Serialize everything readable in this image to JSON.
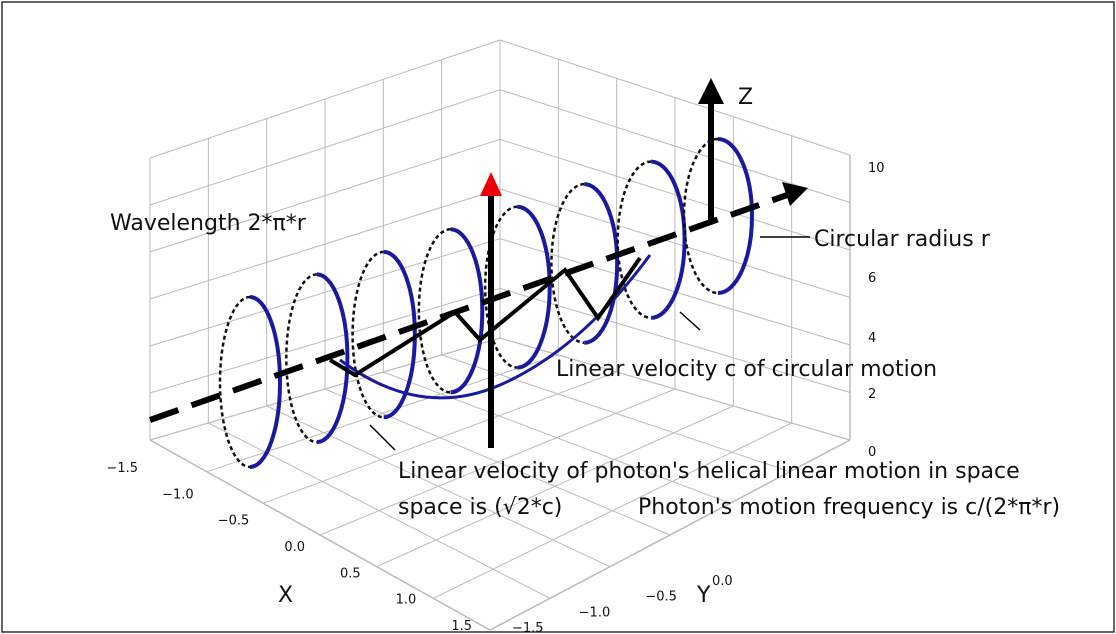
{
  "axes": {
    "x_label": "X",
    "y_label": "Y",
    "z_label": "Z",
    "x_ticks": [
      "−1.5",
      "−1.0",
      "−0.5",
      "0.0",
      "0.5",
      "1.0",
      "1.5"
    ],
    "y_ticks": [
      "0.0",
      "−0.5",
      "−1.0",
      "−1.5"
    ],
    "z_ticks": [
      "10",
      "6",
      "4",
      "2",
      "0"
    ]
  },
  "annotations": {
    "wavelength": "Wavelength 2*π*r",
    "radius": "Circular radius r",
    "circular_velocity": "Linear velocity c of circular motion",
    "helical_velocity": "Linear velocity of photon's helical linear motion in space",
    "helical_velocity_value": "space is (√2*c)",
    "frequency": "Photon's motion frequency is c/(2*π*r)"
  }
}
